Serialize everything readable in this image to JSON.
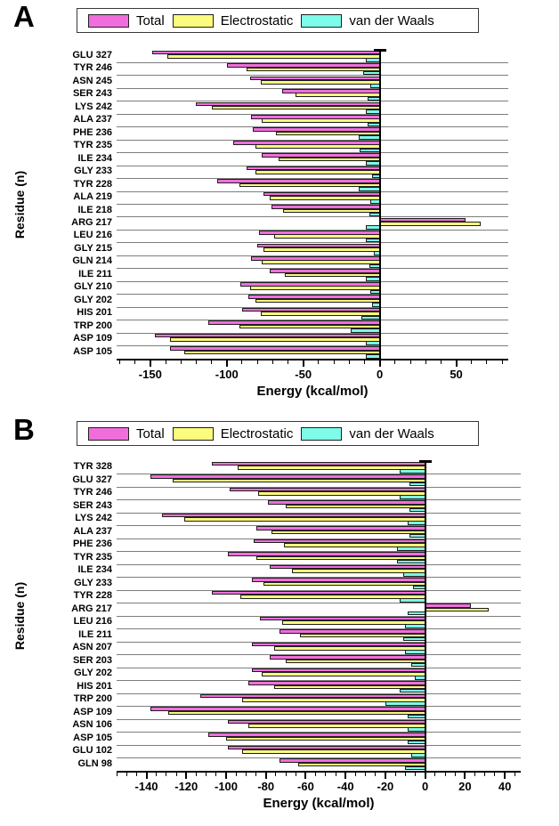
{
  "colors": {
    "total": "#F06EDC",
    "electrostatic": "#FBFB7D",
    "van_der_waals": "#7EFBE9",
    "bar_border": "#1f1f1f",
    "axis": "#000000",
    "grid": "#7d7d7d"
  },
  "chart_data": [
    {
      "type": "bar",
      "panel_label": "A",
      "xlabel": "Energy (kcal/mol)",
      "ylabel": "Residue (n)",
      "legend": [
        {
          "name": "Total",
          "color": "#F06EDC",
          "icon": "total-swatch-icon"
        },
        {
          "name": "Electrostatic",
          "color": "#FBFB7D",
          "icon": "electrostatic-swatch-icon"
        },
        {
          "name": "van der Waals",
          "color": "#7EFBE9",
          "icon": "vdw-swatch-icon"
        }
      ],
      "legend_position": "top",
      "grid": true,
      "xlim": [
        -172,
        84
      ],
      "x_major_ticks": [
        -150,
        -100,
        -50,
        0,
        50
      ],
      "x_minor_step": 10,
      "categories": [
        "GLU 327",
        "TYR 246",
        "ASN 245",
        "SER 243",
        "LYS 242",
        "ALA 237",
        "PHE 236",
        "TYR 235",
        "ILE 234",
        "GLY 233",
        "TYR 228",
        "ALA 219",
        "ILE 218",
        "ARG 217",
        "LEU 216",
        "GLY 215",
        "GLN 214",
        "ILE 211",
        "GLY 210",
        "GLY 202",
        "HIS 201",
        "TRP 200",
        "ASP 109",
        "ASP 105"
      ],
      "series": [
        {
          "name": "Total",
          "values": [
            -149,
            -100,
            -85,
            -64,
            -120,
            -84,
            -83,
            -96,
            -77,
            -87,
            -106,
            -76,
            -71,
            56,
            -79,
            -80,
            -84,
            -72,
            -91,
            -86,
            -90,
            -112,
            -147,
            -137
          ]
        },
        {
          "name": "Electrostatic",
          "values": [
            -139,
            -87,
            -78,
            -55,
            -110,
            -77,
            -68,
            -81,
            -66,
            -81,
            -92,
            -72,
            -63,
            66,
            -69,
            -76,
            -77,
            -62,
            -85,
            -81,
            -78,
            -92,
            -137,
            -128
          ]
        },
        {
          "name": "van der Waals",
          "values": [
            -9,
            -11,
            -6,
            -8,
            -9,
            -8,
            -14,
            -13,
            -9,
            -5,
            -14,
            -6,
            -7,
            -9,
            -9,
            -4,
            -7,
            -9,
            -6,
            -5,
            -12,
            -19,
            -9,
            -9
          ]
        }
      ]
    },
    {
      "type": "bar",
      "panel_label": "B",
      "xlabel": "Energy (kcal/mol)",
      "ylabel": "Residue (n)",
      "legend": [
        {
          "name": "Total",
          "color": "#F06EDC",
          "icon": "total-swatch-icon"
        },
        {
          "name": "Electrostatic",
          "color": "#FBFB7D",
          "icon": "electrostatic-swatch-icon"
        },
        {
          "name": "van der Waals",
          "color": "#7EFBE9",
          "icon": "vdw-swatch-icon"
        }
      ],
      "legend_position": "top",
      "grid": true,
      "xlim": [
        -155,
        48
      ],
      "x_major_ticks": [
        -140,
        -120,
        -100,
        -80,
        -60,
        -40,
        -20,
        0,
        20,
        40
      ],
      "x_minor_step": 5,
      "categories": [
        "TYR 328",
        "GLU 327",
        "TYR 246",
        "SER 243",
        "LYS 242",
        "ALA 237",
        "PHE 236",
        "TYR 235",
        "ILE 234",
        "GLY 233",
        "TYR 228",
        "ARG 217",
        "LEU 216",
        "ILE 211",
        "ASN 207",
        "SER 203",
        "GLY 202",
        "HIS 201",
        "TRP 200",
        "ASP 109",
        "ASN 106",
        "ASP 105",
        "GLU 102",
        "GLN 98"
      ],
      "series": [
        {
          "name": "Total",
          "values": [
            -107,
            -138,
            -98,
            -79,
            -132,
            -85,
            -86,
            -99,
            -78,
            -87,
            -107,
            23,
            -83,
            -73,
            -87,
            -78,
            -87,
            -89,
            -113,
            -138,
            -99,
            -109,
            -99,
            -73
          ]
        },
        {
          "name": "Electrostatic",
          "values": [
            -94,
            -127,
            -84,
            -70,
            -121,
            -77,
            -71,
            -85,
            -67,
            -81,
            -93,
            32,
            -72,
            -63,
            -76,
            -70,
            -82,
            -76,
            -92,
            -129,
            -89,
            -100,
            -92,
            -64
          ]
        },
        {
          "name": "van der Waals",
          "values": [
            -13,
            -8,
            -13,
            -8,
            -9,
            -8,
            -14,
            -14,
            -11,
            -6,
            -13,
            -9,
            -10,
            -11,
            -10,
            -7,
            -5,
            -13,
            -20,
            -9,
            -9,
            -9,
            -7,
            -10
          ]
        }
      ]
    }
  ]
}
